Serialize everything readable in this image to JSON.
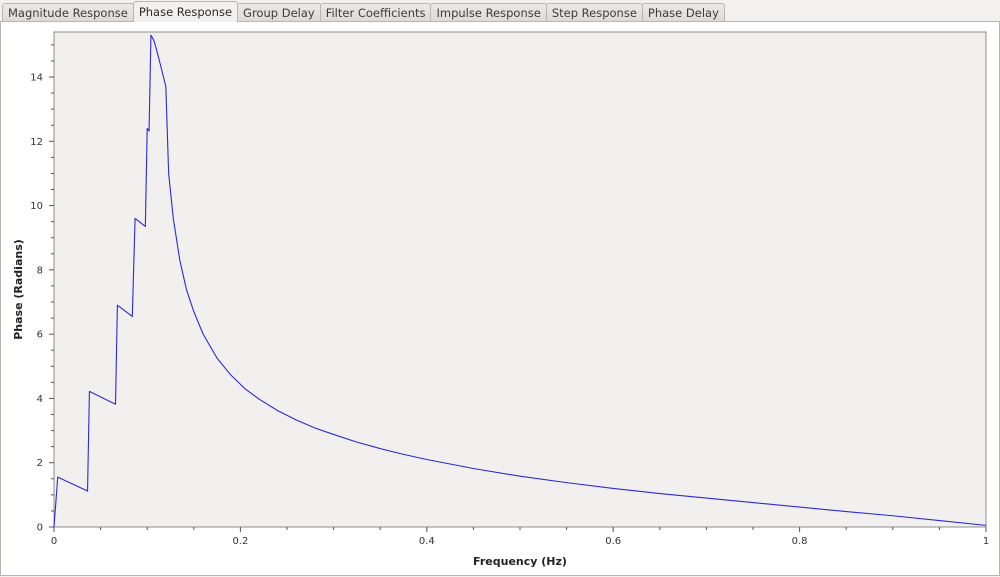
{
  "tabs": [
    {
      "label": "Magnitude Response",
      "active": false
    },
    {
      "label": "Phase Response",
      "active": true
    },
    {
      "label": "Group Delay",
      "active": false
    },
    {
      "label": "Filter Coefficients",
      "active": false
    },
    {
      "label": "Impulse Response",
      "active": false
    },
    {
      "label": "Step Response",
      "active": false
    },
    {
      "label": "Phase Delay",
      "active": false
    }
  ],
  "chart_data": {
    "type": "line",
    "xlabel": "Frequency (Hz)",
    "ylabel": "Phase (Radians)",
    "xlim": [
      0,
      1
    ],
    "ylim": [
      0,
      15.4
    ],
    "xticks": [
      0,
      0.2,
      0.4,
      0.6,
      0.8,
      1
    ],
    "xtick_labels": [
      "0",
      "0.2",
      "0.4",
      "0.6",
      "0.8",
      "1"
    ],
    "yticks": [
      0,
      2,
      4,
      6,
      8,
      10,
      12,
      14
    ],
    "ytick_labels": [
      "0",
      "2",
      "4",
      "6",
      "8",
      "10",
      "12",
      "14"
    ],
    "grid": false,
    "line_color": "#2a2ad8",
    "plot_background": "#f2f0ef",
    "series": [
      {
        "x": [
          0,
          0.004,
          0.036,
          0.038,
          0.066,
          0.068,
          0.084,
          0.087,
          0.098,
          0.1,
          0.102,
          0.104,
          0.107,
          0.11,
          0.114,
          0.12,
          0.123,
          0.128,
          0.135,
          0.142,
          0.15,
          0.16,
          0.175,
          0.19,
          0.205,
          0.22,
          0.24,
          0.26,
          0.28,
          0.3,
          0.325,
          0.35,
          0.375,
          0.4,
          0.45,
          0.5,
          0.55,
          0.6,
          0.65,
          0.7,
          0.75,
          0.8,
          0.85,
          0.9,
          0.95,
          1.0
        ],
        "y": [
          0,
          1.55,
          1.12,
          4.22,
          3.82,
          6.9,
          6.55,
          9.6,
          9.35,
          12.4,
          12.32,
          15.3,
          15.15,
          14.85,
          14.4,
          13.7,
          11.0,
          9.6,
          8.3,
          7.4,
          6.7,
          6.0,
          5.25,
          4.72,
          4.3,
          3.98,
          3.62,
          3.33,
          3.08,
          2.88,
          2.64,
          2.44,
          2.26,
          2.1,
          1.82,
          1.58,
          1.38,
          1.2,
          1.04,
          0.9,
          0.76,
          0.62,
          0.48,
          0.35,
          0.2,
          0.05
        ]
      }
    ]
  }
}
